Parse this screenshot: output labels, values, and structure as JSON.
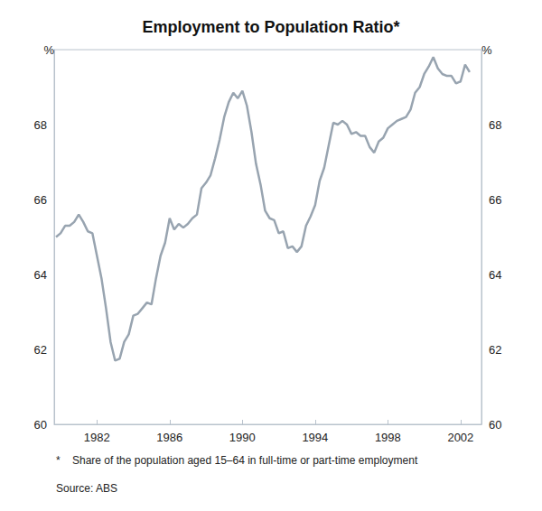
{
  "chart_data": {
    "type": "line",
    "title": "Employment to Population Ratio*",
    "ylabel": "%",
    "footnote": "*    Share of the population aged 15–64 in full-time or part-time employment",
    "source": "Source: ABS",
    "color": "#98a4b0",
    "grid": false,
    "xlim": [
      1979.65,
      2003.15
    ],
    "xticks": [
      1982,
      1986,
      1990,
      1994,
      1998,
      2002
    ],
    "ylim": [
      60,
      70
    ],
    "yticks": [
      60,
      62,
      64,
      66,
      68
    ],
    "x": [
      1979.75,
      1980,
      1980.25,
      1980.5,
      1980.75,
      1981,
      1981.25,
      1981.5,
      1981.75,
      1982,
      1982.25,
      1982.5,
      1982.75,
      1983,
      1983.25,
      1983.5,
      1983.75,
      1984,
      1984.25,
      1984.5,
      1984.75,
      1985,
      1985.25,
      1985.5,
      1985.75,
      1986,
      1986.25,
      1986.5,
      1986.75,
      1987,
      1987.25,
      1987.5,
      1987.75,
      1988,
      1988.25,
      1988.5,
      1988.75,
      1989,
      1989.25,
      1989.5,
      1989.75,
      1990,
      1990.25,
      1990.5,
      1990.75,
      1991,
      1991.25,
      1991.5,
      1991.75,
      1992,
      1992.25,
      1992.5,
      1992.75,
      1993,
      1993.25,
      1993.5,
      1993.75,
      1994,
      1994.25,
      1994.5,
      1994.75,
      1995,
      1995.25,
      1995.5,
      1995.75,
      1996,
      1996.25,
      1996.5,
      1996.75,
      1997,
      1997.25,
      1997.5,
      1997.75,
      1998,
      1998.25,
      1998.5,
      1998.75,
      1999,
      1999.25,
      1999.5,
      1999.75,
      2000,
      2000.25,
      2000.5,
      2000.75,
      2001,
      2001.25,
      2001.5,
      2001.75,
      2002,
      2002.25,
      2002.5
    ],
    "values": [
      65.0,
      65.1,
      65.3,
      65.3,
      65.4,
      65.6,
      65.4,
      65.15,
      65.1,
      64.5,
      63.9,
      63.1,
      62.2,
      61.7,
      61.75,
      62.2,
      62.4,
      62.9,
      62.95,
      63.1,
      63.25,
      63.2,
      63.9,
      64.5,
      64.85,
      65.5,
      65.2,
      65.35,
      65.25,
      65.35,
      65.5,
      65.6,
      66.3,
      66.45,
      66.65,
      67.1,
      67.6,
      68.2,
      68.6,
      68.85,
      68.7,
      68.9,
      68.5,
      67.8,
      66.95,
      66.4,
      65.7,
      65.5,
      65.45,
      65.1,
      65.15,
      64.7,
      64.75,
      64.6,
      64.75,
      65.3,
      65.55,
      65.85,
      66.5,
      66.85,
      67.45,
      68.05,
      68.0,
      68.1,
      68.0,
      67.75,
      67.8,
      67.7,
      67.7,
      67.4,
      67.25,
      67.55,
      67.65,
      67.9,
      68.0,
      68.1,
      68.15,
      68.2,
      68.4,
      68.85,
      69.0,
      69.35,
      69.55,
      69.8,
      69.5,
      69.35,
      69.3,
      69.3,
      69.1,
      69.15,
      69.6,
      69.4
    ]
  }
}
